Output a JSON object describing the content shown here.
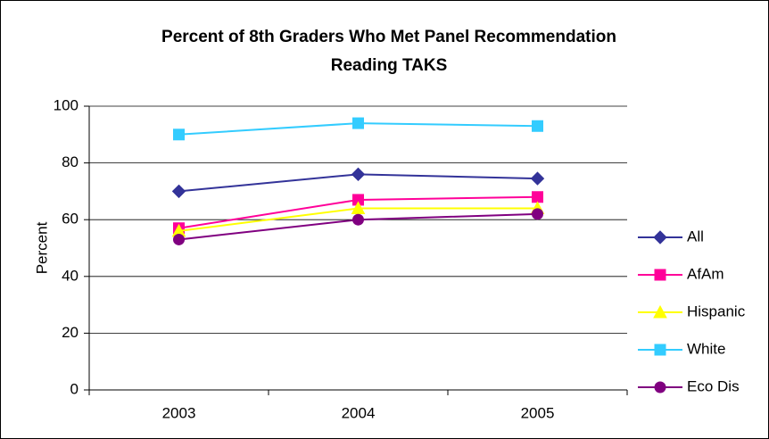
{
  "chart_data": {
    "type": "line",
    "title": "Percent of 8th Graders Who Met Panel Recommendation",
    "subtitle": "Reading TAKS",
    "y_label": "Percent",
    "categories": [
      "2003",
      "2004",
      "2005"
    ],
    "series": [
      {
        "name": "All",
        "color": "#333399",
        "marker": "diamond",
        "values": [
          70,
          76,
          74.5
        ]
      },
      {
        "name": "AfAm",
        "color": "#ff0099",
        "marker": "square",
        "values": [
          57,
          67,
          68
        ]
      },
      {
        "name": "Hispanic",
        "color": "#ffff00",
        "marker": "triangle",
        "values": [
          56,
          64,
          64
        ]
      },
      {
        "name": "White",
        "color": "#33ccff",
        "marker": "square",
        "values": [
          90,
          94,
          93
        ]
      },
      {
        "name": "Eco Dis",
        "color": "#800080",
        "marker": "circle",
        "values": [
          53,
          60,
          62
        ]
      }
    ],
    "ylim": [
      0,
      100
    ],
    "yticks": [
      0,
      20,
      40,
      60,
      80,
      100
    ],
    "grid": true,
    "legend": "right"
  }
}
